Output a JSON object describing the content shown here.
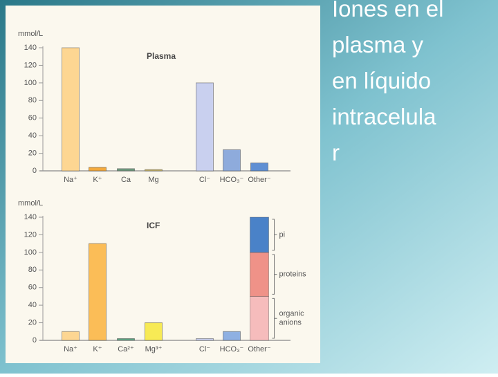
{
  "slide": {
    "title_lines": [
      "Iones en el",
      "plasma y",
      "en líquido",
      "intracelula",
      "r"
    ]
  },
  "chart_data": [
    {
      "type": "bar",
      "title": "Plasma",
      "y_label": "mmol/L",
      "categories": [
        "Na⁺",
        "K⁺",
        "Ca",
        "Mg",
        "Cl⁻",
        "HCO₃⁻",
        "Other⁻"
      ],
      "values": [
        140,
        4,
        2.5,
        1.5,
        100,
        24,
        9
      ],
      "colors": [
        "#fdd692",
        "#f3a93c",
        "#6f9c80",
        "#cdb86a",
        "#c9d0ef",
        "#8eabdc",
        "#5f8fd3"
      ],
      "ylim": [
        0,
        140
      ],
      "yticks": [
        0,
        20,
        40,
        60,
        80,
        100,
        120,
        140
      ]
    },
    {
      "type": "bar",
      "title": "ICF",
      "y_label": "mmol/L",
      "categories": [
        "Na⁺",
        "K⁺",
        "Ca²⁺",
        "Mg³⁺",
        "Cl⁻",
        "HCO₃⁻",
        "Other⁻"
      ],
      "values": [
        10,
        110,
        2,
        20,
        2,
        10,
        null
      ],
      "colors": [
        "#fdd692",
        "#fbbd57",
        "#5ea583",
        "#f7ea55",
        "#c9d0ef",
        "#8eb0e2",
        null
      ],
      "stacks": [
        {
          "name": "organic anions",
          "color": "#f6bcbc",
          "value": 50
        },
        {
          "name": "proteins",
          "color": "#ef9288",
          "value": 50
        },
        {
          "name": "pi",
          "color": "#4a82c8",
          "value": 40
        }
      ],
      "ylim": [
        0,
        140
      ],
      "yticks": [
        0,
        20,
        40,
        60,
        80,
        100,
        120,
        140
      ]
    }
  ]
}
